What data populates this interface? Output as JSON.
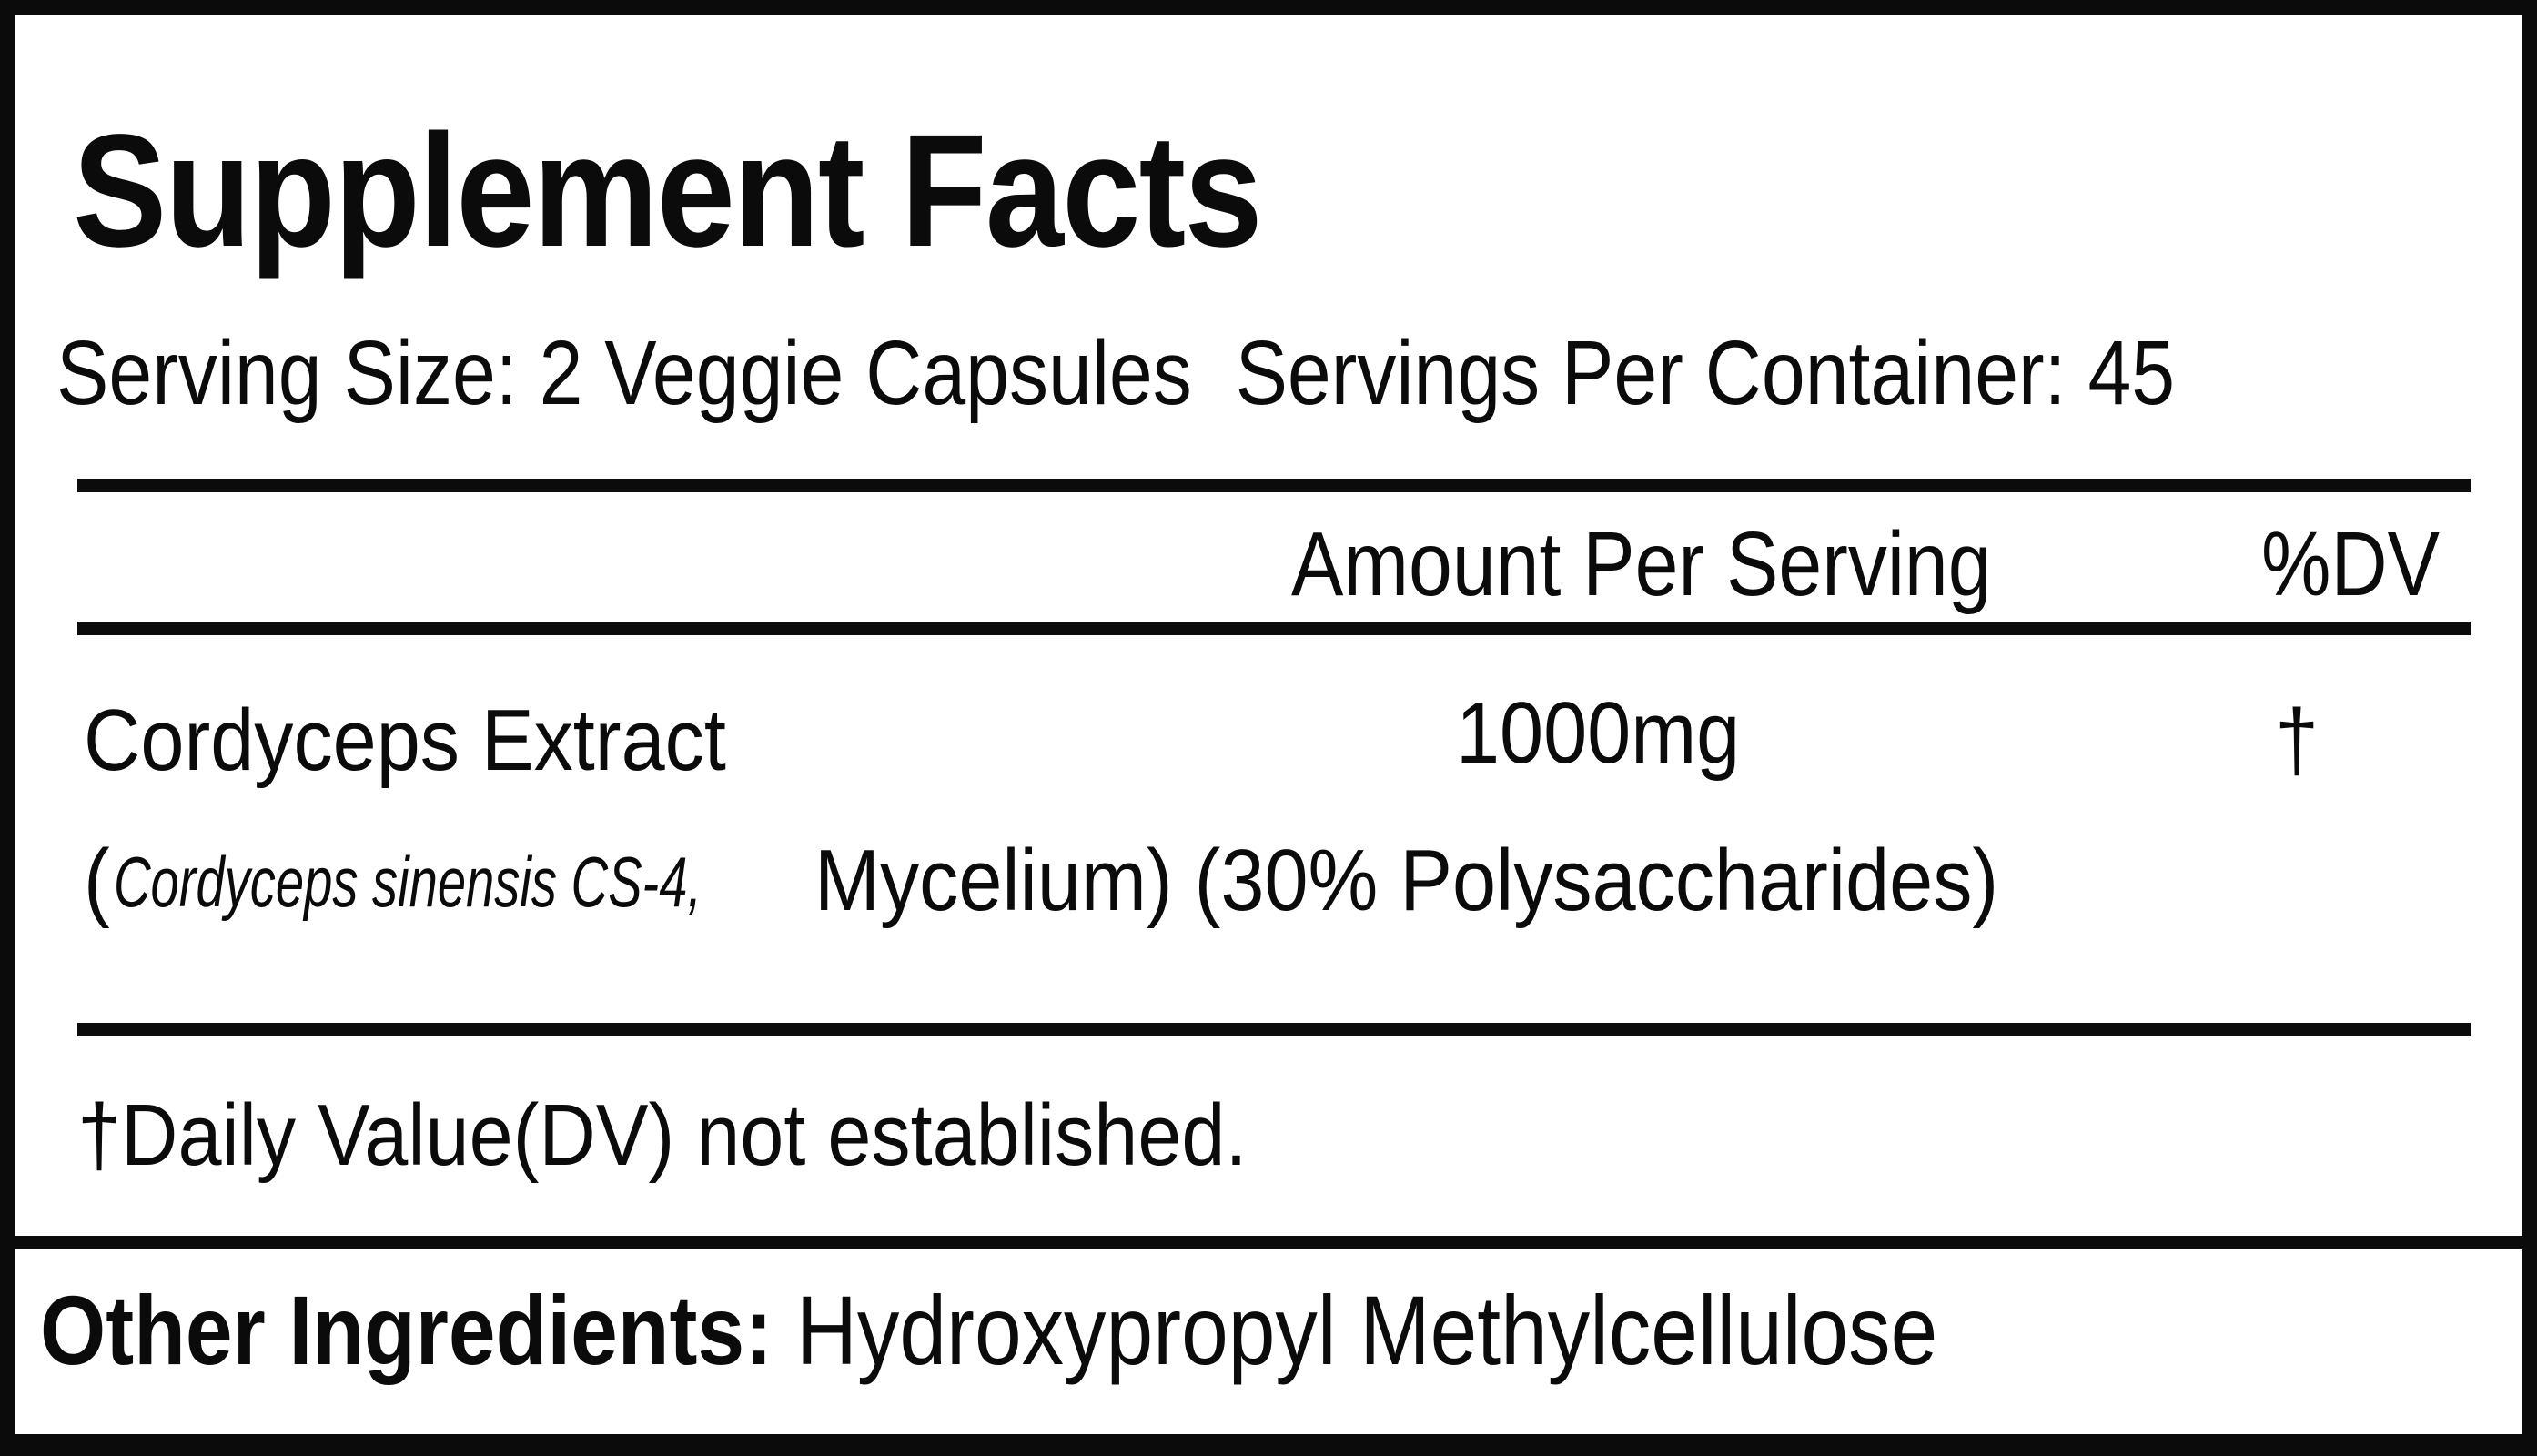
{
  "title": "Supplement Facts",
  "serving_size": "Serving Size: 2 Veggie Capsules",
  "servings_per_container": "Servings Per Container: 45",
  "header": {
    "amount": "Amount Per Serving",
    "dv": "%DV"
  },
  "ingredients": [
    {
      "name": "Cordyceps Extract",
      "amount": "1000mg",
      "dv": "†",
      "detail_open": "(",
      "detail_italic": "Cordyceps sinensis CS-4,",
      "detail_rest": "Mycelium) (30% Polysaccharides)"
    }
  ],
  "footnote": "†Daily Value(DV) not established.",
  "other_ingredients": {
    "label": "Other Ingredients:",
    "value": "Hydroxypropyl Methylcellulose"
  }
}
